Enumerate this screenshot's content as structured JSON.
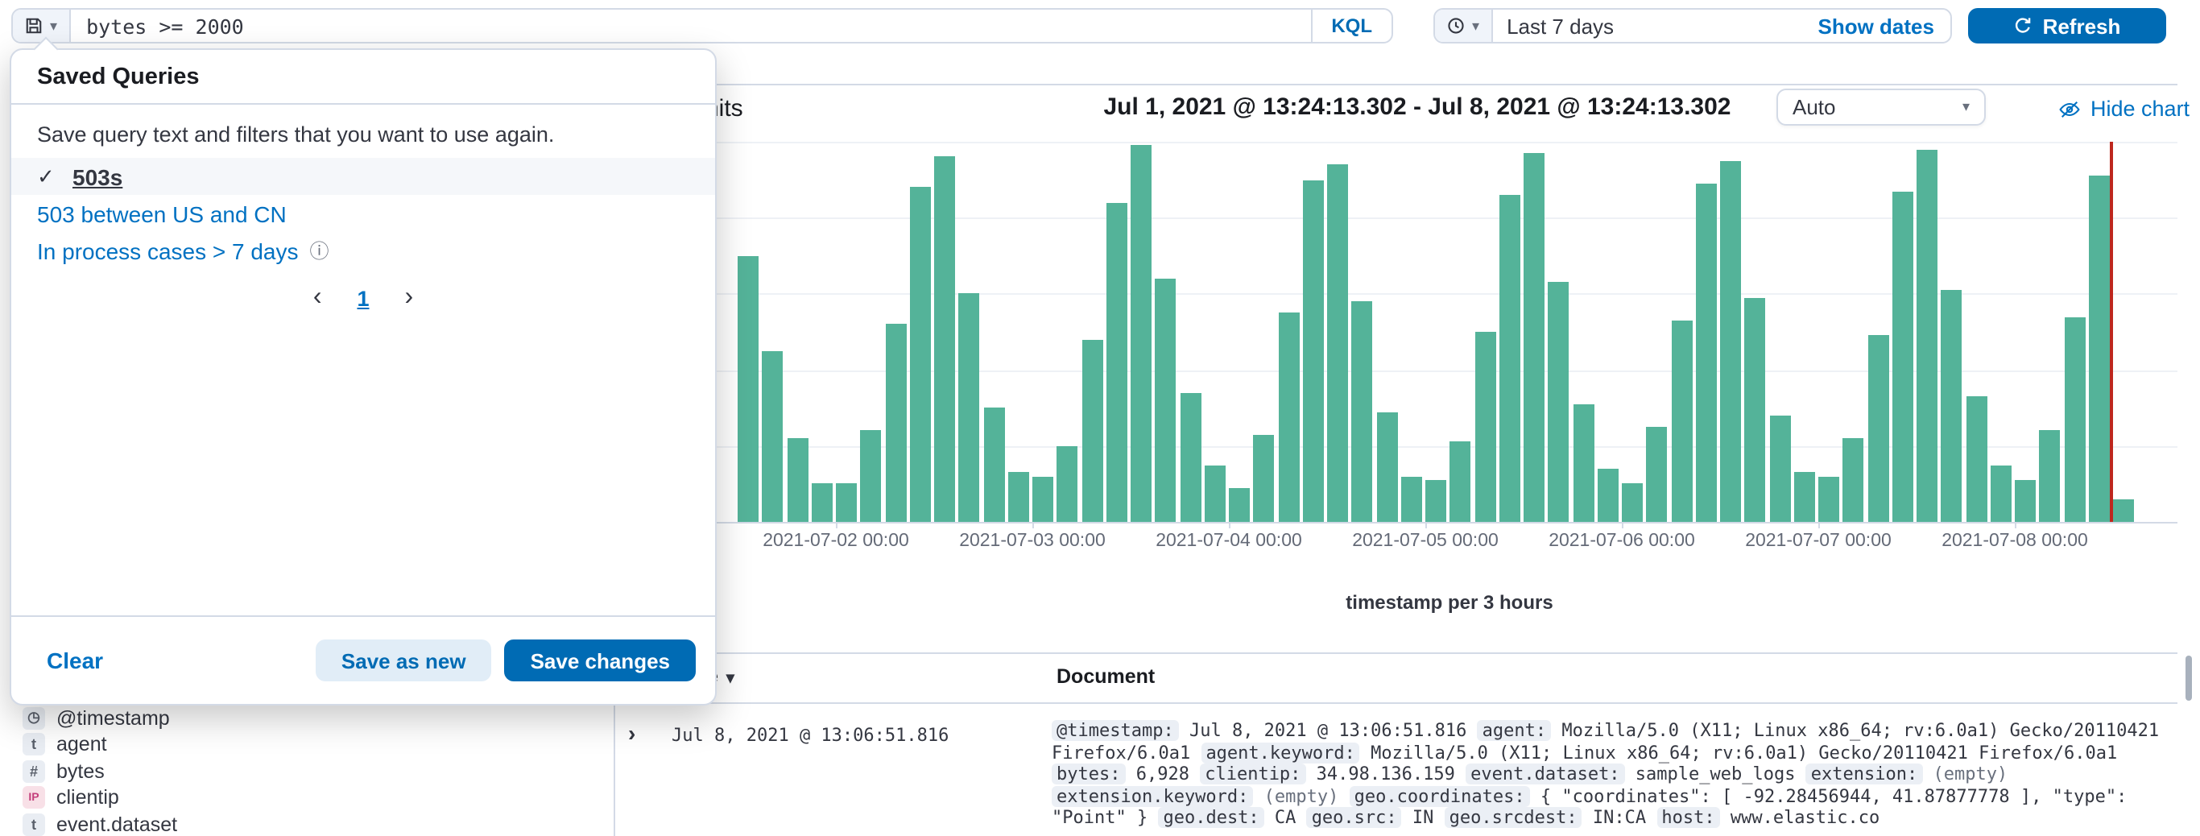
{
  "query_bar": {
    "input_value": "bytes >= 2000",
    "language_badge": "KQL"
  },
  "time_picker": {
    "value": "Last 7 days",
    "show_dates_label": "Show dates"
  },
  "refresh_button": {
    "label": "Refresh"
  },
  "saved_queries_popover": {
    "title": "Saved Queries",
    "description": "Save query text and filters that you want to use again.",
    "items": [
      {
        "label": "503s",
        "selected": true,
        "has_info_icon": false
      },
      {
        "label": "503 between US and CN",
        "selected": false,
        "has_info_icon": false
      },
      {
        "label": "In process cases > 7 days",
        "selected": false,
        "has_info_icon": true
      }
    ],
    "pagination": {
      "current_page": "1"
    },
    "footer": {
      "clear_label": "Clear",
      "save_as_new_label": "Save as new",
      "save_changes_label": "Save changes"
    }
  },
  "sidebar": {
    "fields": [
      {
        "name": "@timestamp",
        "type": "date"
      },
      {
        "name": "agent",
        "type": "text"
      },
      {
        "name": "bytes",
        "type": "number"
      },
      {
        "name": "clientip",
        "type": "ip"
      },
      {
        "name": "event.dataset",
        "type": "text"
      }
    ]
  },
  "field_type_tokens": {
    "date": {
      "glyph": "◷",
      "bg": "#E9EDF3",
      "fg": "#5A606B"
    },
    "text": {
      "glyph": "t",
      "bg": "#E9EDF3",
      "fg": "#5A606B"
    },
    "number": {
      "glyph": "#",
      "bg": "#E9EDF3",
      "fg": "#5A606B"
    },
    "ip": {
      "glyph": "IP",
      "bg": "#F8E0E7",
      "fg": "#C4407C"
    }
  },
  "chart_header": {
    "hits_label": "hits",
    "time_range_title": "Jul 1, 2021 @ 13:24:13.302 - Jul 8, 2021 @ 13:24:13.302",
    "interval_select_value": "Auto",
    "hide_chart_label": "Hide chart"
  },
  "chart_data": {
    "type": "bar",
    "x_axis_caption": "timestamp per 3 hours",
    "bucket_interval": "3 hours",
    "start_time": "2021-07-01 12:00",
    "x_tick_labels": [
      "2021-07-02 00:00",
      "2021-07-03 00:00",
      "2021-07-04 00:00",
      "2021-07-05 00:00",
      "2021-07-06 00:00",
      "2021-07-07 00:00",
      "2021-07-08 00:00"
    ],
    "heights_pct": [
      70,
      45,
      22,
      10,
      10,
      24,
      52,
      88,
      96,
      60,
      30,
      13,
      12,
      20,
      48,
      84,
      99,
      64,
      34,
      15,
      9,
      23,
      55,
      90,
      94,
      58,
      29,
      12,
      11,
      21,
      50,
      86,
      97,
      63,
      31,
      14,
      10,
      25,
      53,
      89,
      95,
      59,
      28,
      13,
      12,
      22,
      49,
      87,
      98,
      61,
      33,
      15,
      11,
      24,
      54,
      91,
      6
    ],
    "y_axis_labels_visible": false,
    "current_time_marker": true,
    "bar_color": "#54B399",
    "marker_color": "#BD271E"
  },
  "table": {
    "time_column_header": "Time",
    "document_column_header": "Document",
    "rows": [
      {
        "time": "Jul 8, 2021 @ 13:06:51.816",
        "fields": [
          {
            "name": "@timestamp",
            "value": "Jul 8, 2021 @ 13:06:51.816"
          },
          {
            "name": "agent",
            "value": "Mozilla/5.0 (X11; Linux x86_64; rv:6.0a1) Gecko/20110421 Firefox/6.0a1"
          },
          {
            "name": "agent.keyword",
            "value": "Mozilla/5.0 (X11; Linux x86_64; rv:6.0a1) Gecko/20110421 Firefox/6.0a1"
          },
          {
            "name": "bytes",
            "value": "6,928"
          },
          {
            "name": "clientip",
            "value": "34.98.136.159"
          },
          {
            "name": "event.dataset",
            "value": "sample_web_logs"
          },
          {
            "name": "extension",
            "value": "(empty)"
          },
          {
            "name": "extension.keyword",
            "value": "(empty)"
          },
          {
            "name": "geo.coordinates",
            "value": "{ \"coordinates\": [ -92.28456944, 41.87877778 ], \"type\": \"Point\" }"
          },
          {
            "name": "geo.dest",
            "value": "CA"
          },
          {
            "name": "geo.src",
            "value": "IN"
          },
          {
            "name": "geo.srcdest",
            "value": "IN:CA"
          },
          {
            "name": "host",
            "value": "www.elastic.co"
          }
        ]
      }
    ]
  },
  "glyphs": {
    "caret_down": "▾",
    "sort_down": "▾",
    "check": "✓",
    "chevron_left": "‹",
    "chevron_right": "›",
    "expand_right": "›",
    "info": "ⓘ"
  },
  "colors": {
    "primary_blue": "#006BB4",
    "link_blue": "#0071C2",
    "border": "#D3DAE6",
    "bar_green": "#54B399",
    "marker_red": "#BD271E",
    "selected_row_bg": "#F5F7FA"
  }
}
